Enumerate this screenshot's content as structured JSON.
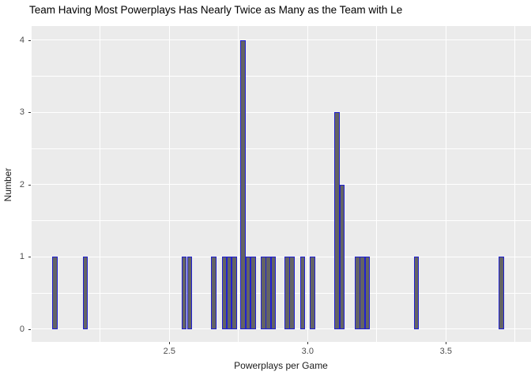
{
  "chart_data": {
    "type": "bar",
    "subtype": "histogram",
    "title": "Team Having Most Powerplays Has Nearly Twice as Many as the Team with Le",
    "xlabel": "Powerplays per Game",
    "ylabel": "Number",
    "x": [
      2.087,
      2.197,
      2.554,
      2.573,
      2.661,
      2.699,
      2.717,
      2.735,
      2.767,
      2.785,
      2.803,
      2.84,
      2.858,
      2.876,
      2.926,
      2.944,
      2.982,
      3.018,
      3.107,
      3.125,
      3.18,
      3.198,
      3.216,
      3.393,
      3.701
    ],
    "counts": [
      1,
      1,
      1,
      1,
      1,
      1,
      1,
      1,
      4,
      1,
      1,
      1,
      1,
      1,
      1,
      1,
      1,
      1,
      3,
      2,
      1,
      1,
      1,
      1,
      1
    ],
    "bin_width": 0.0186,
    "total_observations": 31,
    "x_ticks": [
      2.5,
      3.0,
      3.5
    ],
    "x_tick_labels": [
      "2.5",
      "3.0",
      "3.5"
    ],
    "x_major_gridlines": [
      2.0,
      2.5,
      3.0,
      3.5
    ],
    "x_minor_gridlines": [
      2.25,
      2.75,
      3.25,
      3.75
    ],
    "y_ticks": [
      0,
      1,
      2,
      3,
      4
    ],
    "y_tick_labels": [
      "0",
      "1",
      "2",
      "3",
      "4"
    ],
    "y_major_gridlines": [
      0,
      1,
      2,
      3,
      4
    ],
    "y_minor_gridlines": [
      0.5,
      1.5,
      2.5,
      3.5
    ],
    "xlim": [
      2.0,
      3.81
    ],
    "ylim": [
      -0.18,
      4.19
    ],
    "grid": "on",
    "legend": "none"
  },
  "colors": {
    "bar_fill": "#646464",
    "bar_stroke": "#2020d0",
    "panel_bg": "#ebebeb",
    "gridline": "#ffffff",
    "axis_text": "#4d4d4d",
    "axis_title_text": "#1a1a1a",
    "title_text": "#000000",
    "tick_mark": "#333333",
    "background": "#ffffff"
  }
}
